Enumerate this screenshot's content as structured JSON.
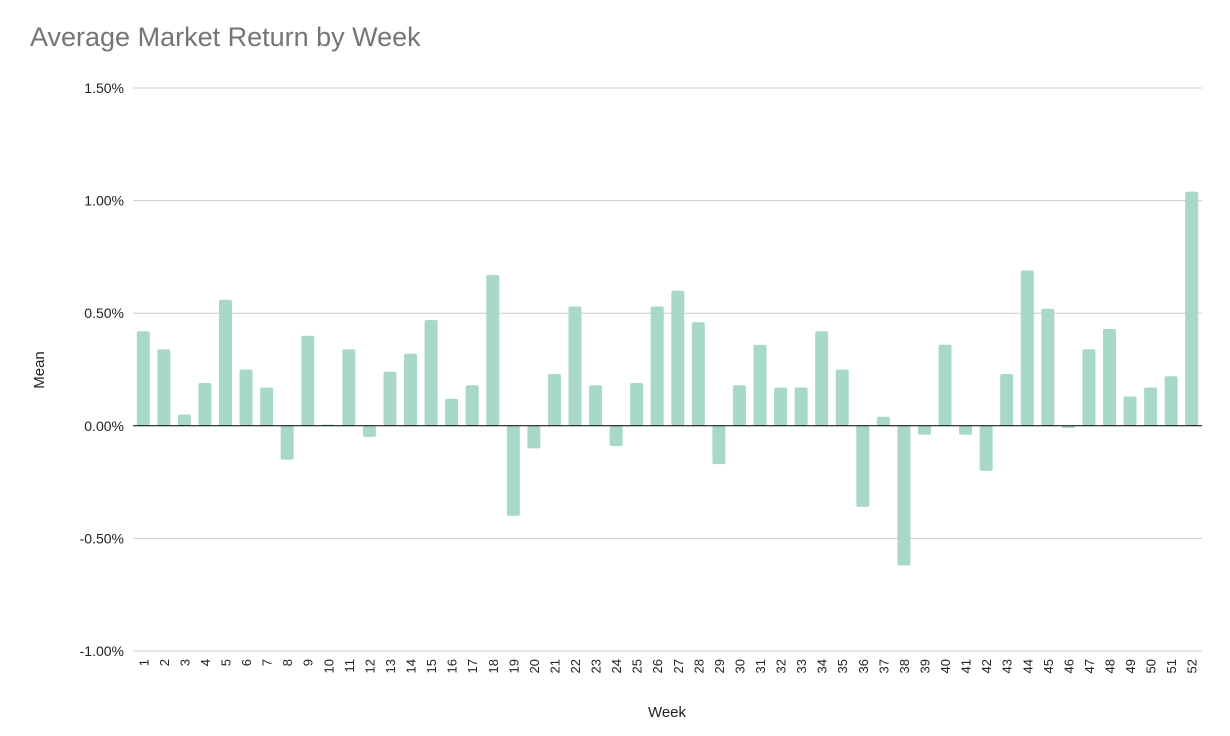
{
  "chart_data": {
    "type": "bar",
    "title": "Average Market Return by Week",
    "xlabel": "Week",
    "ylabel": "Mean",
    "ylim": [
      -1.0,
      1.5
    ],
    "yticks": [
      -1.0,
      -0.5,
      0.0,
      0.5,
      1.0,
      1.5
    ],
    "ytick_labels": [
      "-1.00%",
      "-0.50%",
      "0.00%",
      "0.50%",
      "1.00%",
      "1.50%"
    ],
    "grid": true,
    "legend": "none",
    "categories": [
      "1",
      "2",
      "3",
      "4",
      "5",
      "6",
      "7",
      "8",
      "9",
      "10",
      "11",
      "12",
      "13",
      "14",
      "15",
      "16",
      "17",
      "18",
      "19",
      "20",
      "21",
      "22",
      "23",
      "24",
      "25",
      "26",
      "27",
      "28",
      "29",
      "30",
      "31",
      "32",
      "33",
      "34",
      "35",
      "36",
      "37",
      "38",
      "39",
      "40",
      "41",
      "42",
      "43",
      "44",
      "45",
      "46",
      "47",
      "48",
      "49",
      "50",
      "51",
      "52"
    ],
    "values": [
      0.42,
      0.34,
      0.05,
      0.19,
      0.56,
      0.25,
      0.17,
      -0.15,
      0.4,
      0.005,
      0.34,
      -0.05,
      0.24,
      0.32,
      0.47,
      0.12,
      0.18,
      0.67,
      -0.4,
      -0.1,
      0.23,
      0.53,
      0.18,
      -0.09,
      0.19,
      0.53,
      0.6,
      0.46,
      -0.17,
      0.18,
      0.36,
      0.17,
      0.17,
      0.42,
      0.25,
      -0.36,
      0.04,
      -0.62,
      -0.04,
      0.36,
      -0.04,
      -0.2,
      0.23,
      0.69,
      0.52,
      -0.01,
      0.34,
      0.43,
      0.13,
      0.17,
      0.22,
      1.04
    ],
    "colors": {
      "bar": "#a8d8c6",
      "grid": "#cccccc",
      "zero_line": "#000000"
    }
  }
}
